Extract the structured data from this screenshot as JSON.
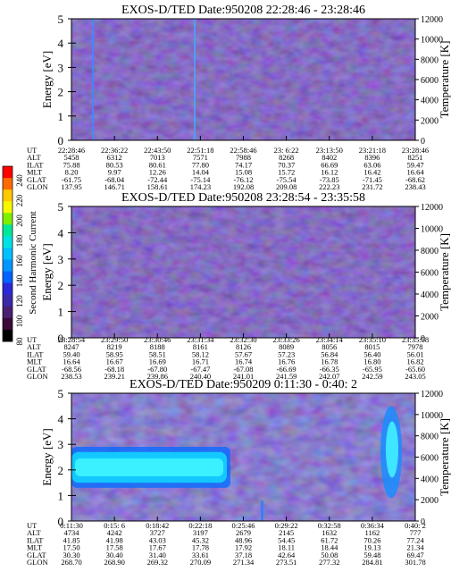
{
  "colorbar": {
    "label": "Second Harmonic Current",
    "ticks": [
      "240",
      "220",
      "200",
      "180",
      "160",
      "140",
      "120",
      "100",
      "80"
    ],
    "colors": [
      "#ff0000",
      "#ff6a00",
      "#ffc800",
      "#f7f700",
      "#7cf000",
      "#00e89a",
      "#00e2e2",
      "#00c0ff",
      "#0096ff",
      "#0062ff",
      "#2a2ad8",
      "#3a2aa8",
      "#4a2070",
      "#3a0a3a",
      "#000000"
    ]
  },
  "chart_data": [
    {
      "type": "heatmap",
      "title_main": "EXOS-D/TED",
      "title_date": "Date:950208",
      "title_time": "22:28:46 - 23:28:46",
      "ylabel": "Energy [eV]",
      "ylabel_right": "Temperature [K]",
      "ylim": [
        0,
        5
      ],
      "yticks": [
        "0",
        "1",
        "2",
        "3",
        "4",
        "5"
      ],
      "ylim_right": [
        0,
        12000
      ],
      "yticks_right": [
        "0",
        "2000",
        "4000",
        "6000",
        "8000",
        "10000",
        "12000"
      ],
      "pattern": "noise",
      "row_labels": [
        "UT",
        "ALT",
        "ILAT",
        "MLT",
        "GLAT",
        "GLON"
      ],
      "columns": [
        [
          "22:28:46",
          "5458",
          "75.88",
          "8.20",
          "-61.75",
          "137.95"
        ],
        [
          "22:36:22",
          "6312",
          "80.53",
          "9.97",
          "-68.04",
          "146.71"
        ],
        [
          "22:43:50",
          "7013",
          "80.61",
          "12.26",
          "-72.44",
          "158.61"
        ],
        [
          "22:51:18",
          "7571",
          "77.80",
          "14.04",
          "-75.14",
          "174.23"
        ],
        [
          "22:58:46",
          "7988",
          "74.17",
          "15.08",
          "-76.12",
          "192.08"
        ],
        [
          "23: 6:22",
          "8268",
          "70.37",
          "15.72",
          "-75.54",
          "209.08"
        ],
        [
          "23:13:50",
          "8402",
          "66.69",
          "16.12",
          "-73.85",
          "222.23"
        ],
        [
          "23:21:18",
          "8396",
          "63.06",
          "16.42",
          "-71.45",
          "231.72"
        ],
        [
          "23:28:46",
          "8251",
          "59.47",
          "16.64",
          "-68.62",
          "238.43"
        ]
      ]
    },
    {
      "type": "heatmap",
      "title_main": "EXOS-D/TED",
      "title_date": "Date:950208",
      "title_time": "23:28:54 - 23:35:58",
      "ylabel": "Energy [eV]",
      "ylabel_right": "Temperature [K]",
      "ylim": [
        0,
        5
      ],
      "yticks": [
        "0",
        "1",
        "2",
        "3",
        "4",
        "5"
      ],
      "ylim_right": [
        0,
        12000
      ],
      "yticks_right": [
        "0",
        "2000",
        "4000",
        "6000",
        "8000",
        "10000",
        "12000"
      ],
      "pattern": "noise",
      "row_labels": [
        "UT",
        "ALT",
        "ILAT",
        "MLT",
        "GLAT",
        "GLON"
      ],
      "columns": [
        [
          "23:28:54",
          "8247",
          "59.40",
          "16.64",
          "-68.56",
          "238.53"
        ],
        [
          "23:29:50",
          "8219",
          "58.95",
          "16.67",
          "-68.18",
          "239.21"
        ],
        [
          "23:30:46",
          "8188",
          "58.51",
          "16.69",
          "-67.80",
          "239.86"
        ],
        [
          "23:31:34",
          "8161",
          "58.12",
          "16.71",
          "-67.47",
          "240.40"
        ],
        [
          "23:32:30",
          "8126",
          "57.67",
          "16.74",
          "-67.08",
          "241.01"
        ],
        [
          "23:33:26",
          "8089",
          "57.23",
          "16.76",
          "-66.69",
          "241.59"
        ],
        [
          "23:34:14",
          "8056",
          "56.84",
          "16.78",
          "-66.35",
          "242.07"
        ],
        [
          "23:35:10",
          "8015",
          "56.40",
          "16.80",
          "-65.95",
          "242.59"
        ],
        [
          "23:35:58",
          "7978",
          "56.01",
          "16.82",
          "-65.60",
          "243.05"
        ]
      ]
    },
    {
      "type": "heatmap",
      "title_main": "EXOS-D/TED",
      "title_date": "Date:950209",
      "title_time": "0:11:30 - 0:40: 2",
      "ylabel": "Energy [eV]",
      "ylabel_right": "Temperature [K]",
      "ylim": [
        0,
        5
      ],
      "yticks": [
        "0",
        "1",
        "2",
        "3",
        "4",
        "5"
      ],
      "ylim_right": [
        0,
        12000
      ],
      "yticks_right": [
        "0",
        "2000",
        "4000",
        "6000",
        "8000",
        "10000",
        "12000"
      ],
      "pattern": "band",
      "row_labels": [
        "UT",
        "ALT",
        "ILAT",
        "MLT",
        "GLAT",
        "GLON"
      ],
      "columns": [
        [
          "0:11:30",
          "4734",
          "41.85",
          "17.50",
          "30.30",
          "268.70"
        ],
        [
          "0:15: 6",
          "4242",
          "41.98",
          "17.58",
          "30.40",
          "268.90"
        ],
        [
          "0:18:42",
          "3727",
          "43.03",
          "17.67",
          "31.40",
          "269.32"
        ],
        [
          "0:22:18",
          "3197",
          "45.32",
          "17.78",
          "33.61",
          "270.09"
        ],
        [
          "0:25:46",
          "2679",
          "48.96",
          "17.92",
          "37.18",
          "271.34"
        ],
        [
          "0:29:22",
          "2145",
          "54.45",
          "18.11",
          "42.64",
          "273.51"
        ],
        [
          "0:32:58",
          "1632",
          "61.72",
          "18.44",
          "50.08",
          "277.32"
        ],
        [
          "0:36:34",
          "1162",
          "70.26",
          "19.13",
          "59.48",
          "284.81"
        ],
        [
          "0:40: 2",
          "777",
          "77.24",
          "21.34",
          "69.47",
          "301.78"
        ]
      ]
    }
  ]
}
